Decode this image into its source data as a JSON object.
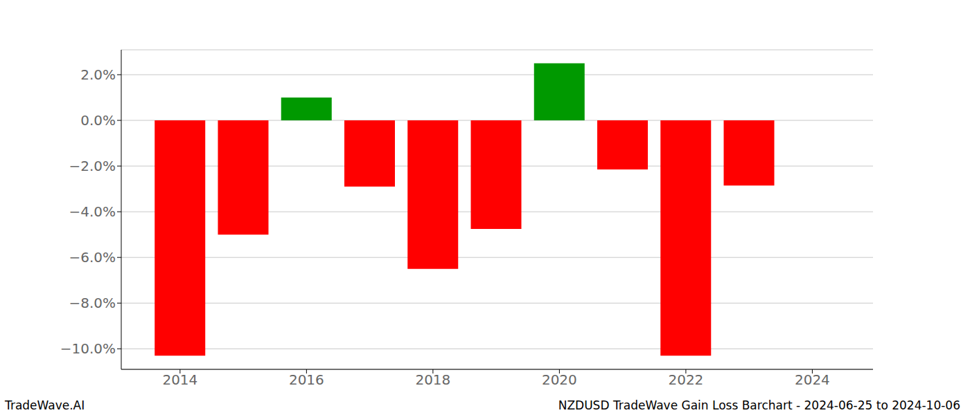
{
  "chart_data": {
    "type": "bar",
    "footer_left": "TradeWave.AI",
    "footer_right": "NZDUSD TradeWave Gain Loss Barchart - 2024-06-25 to 2024-10-06",
    "x": [
      2014,
      2015,
      2016,
      2017,
      2018,
      2019,
      2020,
      2021,
      2022,
      2023
    ],
    "values": [
      -10.3,
      -5.0,
      1.0,
      -2.9,
      -6.5,
      -4.75,
      2.5,
      -2.15,
      -10.3,
      -2.85
    ],
    "colors": [
      "#ff0000",
      "#ff0000",
      "#009900",
      "#ff0000",
      "#ff0000",
      "#ff0000",
      "#009900",
      "#ff0000",
      "#ff0000",
      "#ff0000"
    ],
    "xlim": [
      2013.07,
      2024.96
    ],
    "xticks": [
      2014,
      2016,
      2018,
      2020,
      2022,
      2024
    ],
    "ylim": [
      -10.9,
      3.09
    ],
    "yticks": [
      {
        "value": -10,
        "label": "−10.0%"
      },
      {
        "value": -8,
        "label": "−8.0%"
      },
      {
        "value": -6,
        "label": "−6.0%"
      },
      {
        "value": -4,
        "label": "−4.0%"
      },
      {
        "value": -2,
        "label": "−2.0%"
      },
      {
        "value": 0,
        "label": "0.0%"
      },
      {
        "value": 2,
        "label": "2.0%"
      }
    ],
    "grid": true
  }
}
